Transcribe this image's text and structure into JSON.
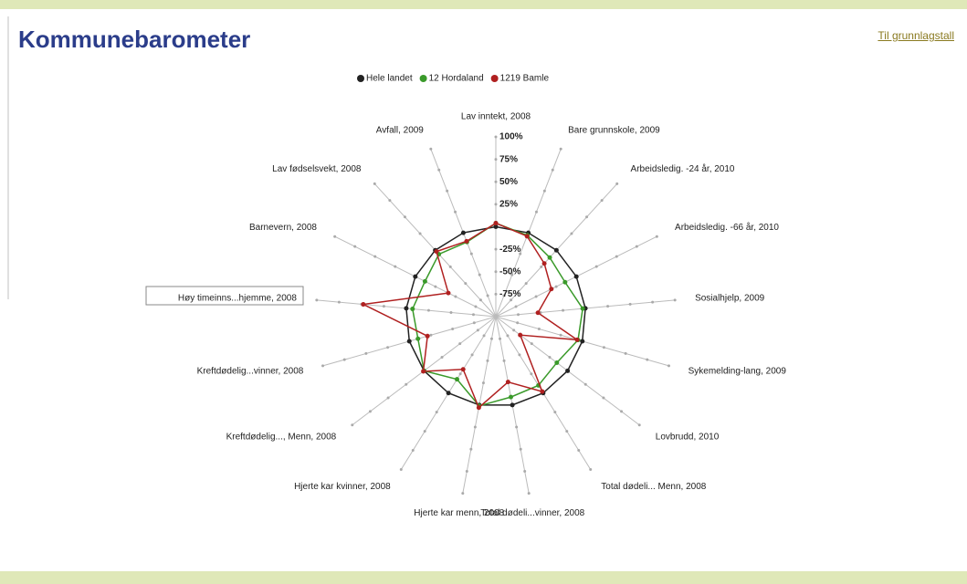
{
  "page": {
    "title": "Kommunebarometer",
    "link": "Til grunnlagstall"
  },
  "chart_data": {
    "type": "radar",
    "categories": [
      "Lav inntekt, 2008",
      "Bare grunnskole, 2009",
      "Arbeidsledig. -24 år, 2010",
      "Arbeidsledig. -66 år, 2010",
      "Sosialhjelp, 2009",
      "Sykemelding-lang, 2009",
      "Lovbrudd, 2010",
      "Total dødeli... Menn, 2008",
      "Total dødeli...vinner, 2008",
      "Hjerte kar menn, 2008",
      "Hjerte kar kvinner, 2008",
      "Kreftdødelig..., Menn, 2008",
      "Kreftdødelig...vinner, 2008",
      "Høy timeinns...hjemme, 2008",
      "Barnevern, 2008",
      "Lav fødselsvekt, 2008",
      "Avfall, 2009"
    ],
    "series": [
      {
        "name": "Hele landet",
        "color": "#222222",
        "values": [
          0,
          0,
          0,
          0,
          0,
          0,
          0,
          0,
          0,
          0,
          0,
          0,
          0,
          0,
          0,
          0,
          0
        ]
      },
      {
        "name": "12 Hordaland",
        "color": "#3a9a2a",
        "values": [
          4,
          -3,
          -11,
          -14,
          -3,
          -5,
          -15,
          -10,
          -9,
          1,
          -18,
          0,
          -10,
          -7,
          -12,
          -6,
          -11
        ]
      },
      {
        "name": "1219 Bamle",
        "color": "#b02020",
        "values": [
          4,
          -4,
          -20,
          -31,
          -53,
          -6,
          -66,
          -2,
          -26,
          3,
          -31,
          1,
          -21,
          48,
          -41,
          -2,
          -10
        ]
      }
    ],
    "ylim": [
      -100,
      100
    ],
    "yticks": [
      {
        "value": -75,
        "label": "-75%"
      },
      {
        "value": -50,
        "label": "-50%"
      },
      {
        "value": -25,
        "label": "-25%"
      },
      {
        "value": 25,
        "label": "25%"
      },
      {
        "value": 50,
        "label": "50%"
      },
      {
        "value": 75,
        "label": "75%"
      },
      {
        "value": 100,
        "label": "100%"
      }
    ],
    "legend": "top"
  }
}
